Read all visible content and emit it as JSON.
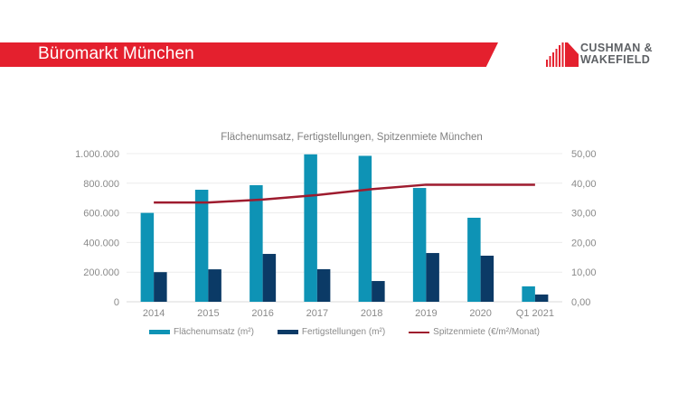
{
  "header": {
    "title": "Büromarkt München",
    "brand_line1": "CUSHMAN &",
    "brand_line2": "WAKEFIELD",
    "banner_color": "#e4202e"
  },
  "chart_data": {
    "type": "bar",
    "title": "Flächenumsatz, Fertigstellungen, Spitzenmiete München",
    "categories": [
      "2014",
      "2015",
      "2016",
      "2017",
      "2018",
      "2019",
      "2020",
      "Q1 2021"
    ],
    "series": [
      {
        "name": "Flächenumsatz (m²)",
        "type": "bar",
        "axis": "left",
        "color": "#0e93b5",
        "values": [
          600000,
          756000,
          787000,
          995000,
          985000,
          768000,
          567000,
          104000
        ]
      },
      {
        "name": "Fertigstellungen (m²)",
        "type": "bar",
        "axis": "left",
        "color": "#0b3a66",
        "values": [
          200000,
          219000,
          323000,
          220000,
          140000,
          329000,
          311000,
          49000
        ]
      },
      {
        "name": "Spitzenmiete (€/m²/Monat)",
        "type": "line",
        "axis": "right",
        "color": "#9e1b2e",
        "values": [
          33.5,
          33.5,
          34.5,
          36.0,
          38.0,
          39.5,
          39.5,
          39.5
        ]
      }
    ],
    "y_left": {
      "ylim": [
        0,
        1000000
      ],
      "ticks": [
        0,
        200000,
        400000,
        600000,
        800000,
        1000000
      ],
      "tick_labels": [
        "0",
        "200.000",
        "400.000",
        "600.000",
        "800.000",
        "1.000.000"
      ]
    },
    "y_right": {
      "ylim": [
        0,
        50
      ],
      "ticks": [
        0,
        10,
        20,
        30,
        40,
        50
      ],
      "tick_labels": [
        "0,00",
        "10,00",
        "20,00",
        "30,00",
        "40,00",
        "50,00"
      ]
    },
    "xlabel": "",
    "ylabel": "",
    "grid": true,
    "legend_position": "bottom"
  }
}
